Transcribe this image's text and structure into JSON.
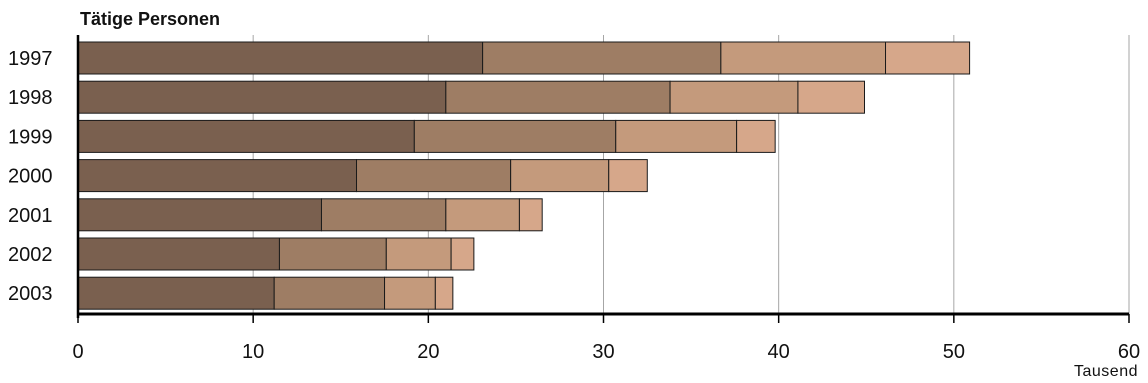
{
  "chart_data": {
    "type": "bar",
    "orientation": "horizontal",
    "stacked": true,
    "title": "Tätige Personen",
    "xlabel": "Tausend",
    "ylabel": "",
    "xlim": [
      0,
      60
    ],
    "xticks": [
      "0",
      "10",
      "20",
      "30",
      "40",
      "50",
      "60"
    ],
    "grid": true,
    "categories": [
      "1997",
      "1998",
      "1999",
      "2000",
      "2001",
      "2002",
      "2003"
    ],
    "series": [
      {
        "values": [
          23.1,
          21.0,
          19.2,
          15.9,
          13.9,
          11.5,
          11.2
        ],
        "color": "#7a604f"
      },
      {
        "values": [
          13.6,
          12.8,
          11.5,
          8.8,
          7.1,
          6.1,
          6.3
        ],
        "color": "#9e7d64"
      },
      {
        "values": [
          9.4,
          7.3,
          6.9,
          5.6,
          4.2,
          3.7,
          2.9
        ],
        "color": "#c49a7c"
      },
      {
        "values": [
          4.8,
          3.8,
          2.2,
          2.2,
          1.3,
          1.3,
          1.0
        ],
        "color": "#d6a78a"
      }
    ]
  }
}
